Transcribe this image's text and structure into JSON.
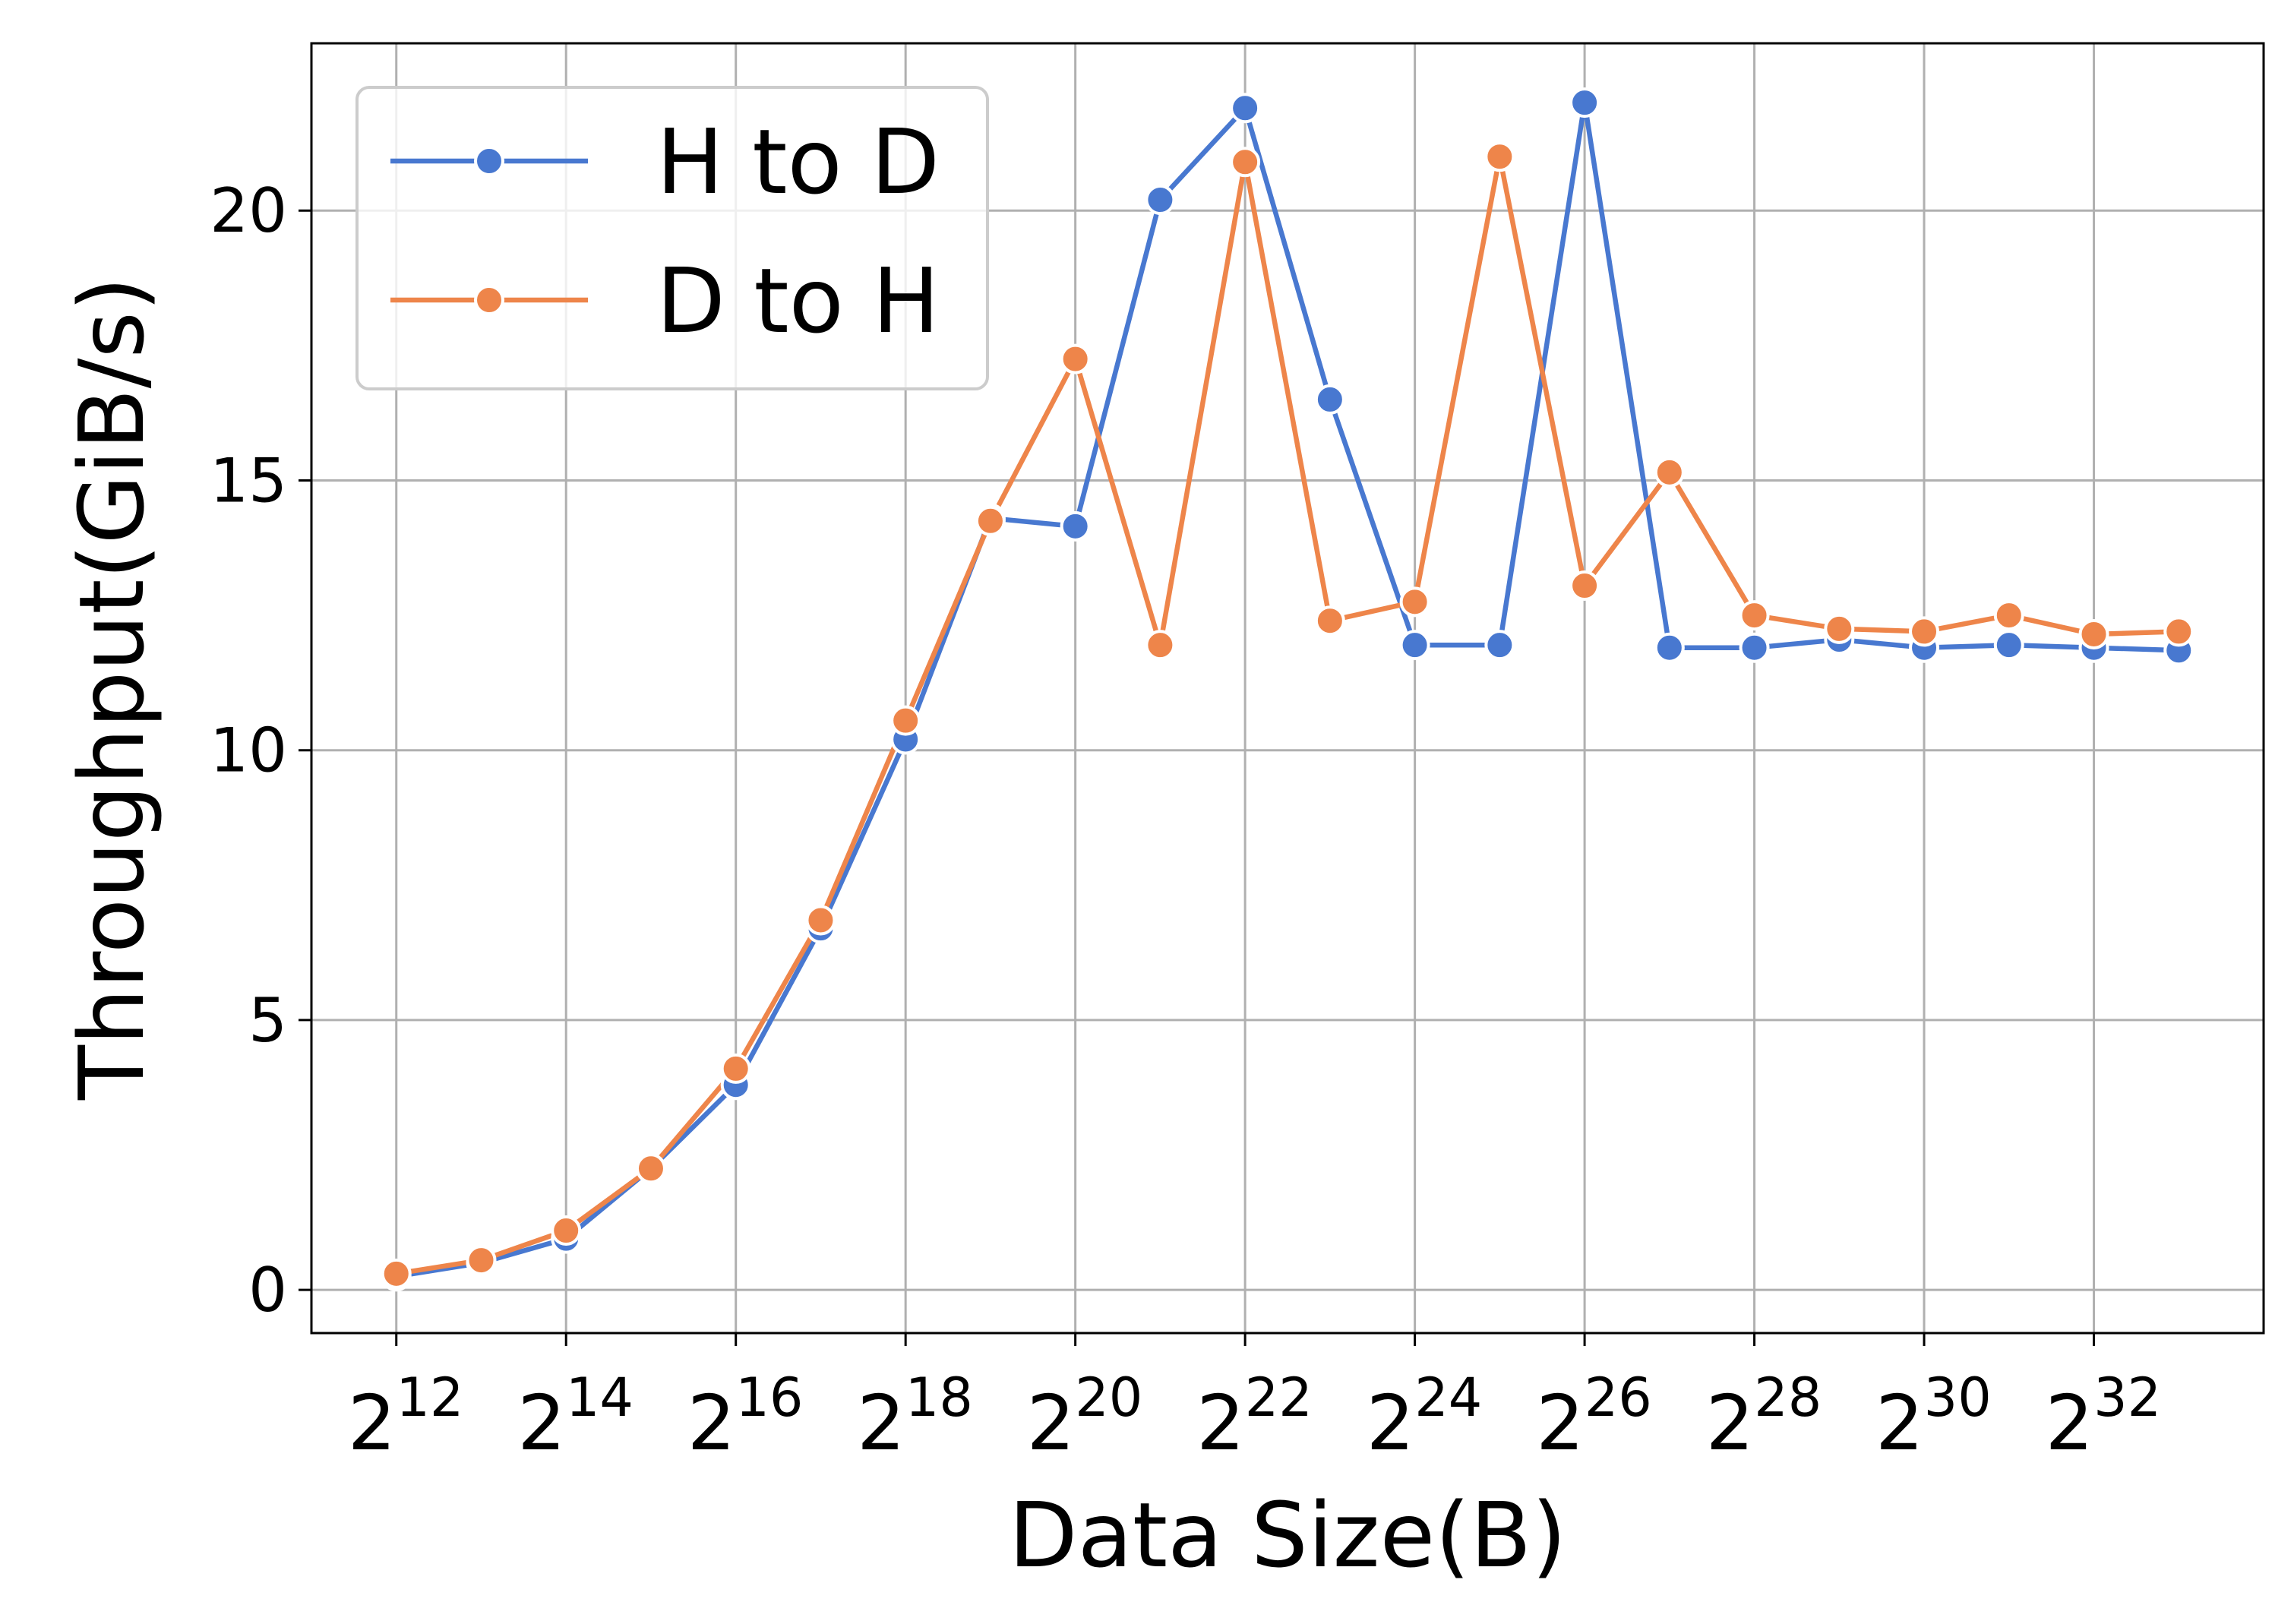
{
  "chart_data": {
    "type": "line",
    "xlabel": "Data Size(B)",
    "ylabel": "Throughput(GiB/s)",
    "x_scale": "log2",
    "x": [
      4096,
      8192,
      16384,
      32768,
      65536,
      131072,
      262144,
      524288,
      1048576,
      2097152,
      4194304,
      8388608,
      16777216,
      33554432,
      67108864,
      134217728,
      268435456,
      536870912,
      1073741824,
      2147483648,
      4294967296,
      8589934592
    ],
    "x_ticks": [
      {
        "base": "2",
        "exp": "12"
      },
      {
        "base": "2",
        "exp": "14"
      },
      {
        "base": "2",
        "exp": "16"
      },
      {
        "base": "2",
        "exp": "18"
      },
      {
        "base": "2",
        "exp": "20"
      },
      {
        "base": "2",
        "exp": "22"
      },
      {
        "base": "2",
        "exp": "24"
      },
      {
        "base": "2",
        "exp": "26"
      },
      {
        "base": "2",
        "exp": "28"
      },
      {
        "base": "2",
        "exp": "30"
      },
      {
        "base": "2",
        "exp": "32"
      }
    ],
    "x_tick_values": [
      4096,
      16384,
      65536,
      262144,
      1048576,
      4194304,
      16777216,
      67108864,
      268435456,
      1073741824,
      4294967296
    ],
    "xlim": [
      2048,
      17179869184
    ],
    "ylim": [
      -0.8,
      23.1
    ],
    "y_ticks": [
      "0",
      "5",
      "10",
      "15",
      "20"
    ],
    "y_tick_values": [
      0,
      5,
      10,
      15,
      20
    ],
    "grid": true,
    "legend_position": "top-left",
    "series": [
      {
        "name": "H to D",
        "color": "#4878d0",
        "values": [
          0.25,
          0.5,
          0.95,
          2.25,
          3.8,
          6.7,
          10.2,
          14.3,
          14.15,
          20.2,
          21.9,
          16.5,
          11.95,
          11.95,
          22.0,
          11.9,
          11.9,
          12.05,
          11.9,
          11.95,
          11.9,
          11.85
        ]
      },
      {
        "name": "D to H",
        "color": "#ee854a",
        "values": [
          0.3,
          0.55,
          1.1,
          2.25,
          4.1,
          6.85,
          10.55,
          14.25,
          17.25,
          11.95,
          20.9,
          12.4,
          12.75,
          21.0,
          13.05,
          15.15,
          12.5,
          12.25,
          12.2,
          12.5,
          12.15,
          12.2
        ]
      }
    ]
  }
}
